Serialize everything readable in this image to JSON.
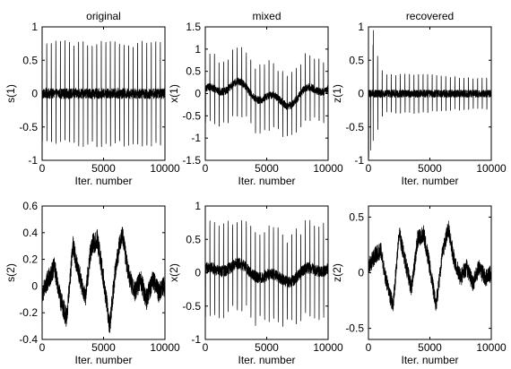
{
  "chart_data": [
    {
      "type": "line",
      "title": "original",
      "xlabel": "Iter. number",
      "ylabel": "s(1)",
      "xlim": [
        0,
        10000
      ],
      "ylim": [
        -1,
        1
      ],
      "xticks": [
        "0",
        "5000",
        "10000"
      ],
      "yticks": [
        "-1",
        "-0.5",
        "0",
        "0.5",
        "1"
      ],
      "series": [
        {
          "signal": "periodic-spikes",
          "amplitude": 0.8,
          "period_iterations": 370,
          "baseline_noise": 0.08
        }
      ]
    },
    {
      "type": "line",
      "title": "mixed",
      "xlabel": "Iter. number",
      "ylabel": "x(1)",
      "xlim": [
        0,
        10000
      ],
      "ylim": [
        -1.5,
        1.5
      ],
      "xticks": [
        "0",
        "5000",
        "10000"
      ],
      "yticks": [
        "-1.5",
        "-1",
        "-0.5",
        "0",
        "0.5",
        "1",
        "1.5"
      ],
      "series": [
        {
          "signal": "spikes-plus-slow-drift",
          "spike_amplitude": 0.7,
          "drift_amplitude": 0.3,
          "period_iterations": 370
        }
      ]
    },
    {
      "type": "line",
      "title": "recovered",
      "xlabel": "Iter. number",
      "ylabel": "z(1)",
      "xlim": [
        0,
        10000
      ],
      "ylim": [
        -1,
        1
      ],
      "xticks": [
        "0",
        "5000",
        "10000"
      ],
      "yticks": [
        "-1",
        "-0.5",
        "0",
        "0.5",
        "1"
      ],
      "series": [
        {
          "signal": "converging-spikes",
          "initial_amplitude": 0.9,
          "final_amplitude": 0.3,
          "period_iterations": 370
        }
      ]
    },
    {
      "type": "line",
      "title": "",
      "xlabel": "Iter. number",
      "ylabel": "s(2)",
      "xlim": [
        0,
        10000
      ],
      "ylim": [
        -0.4,
        0.6
      ],
      "xticks": [
        "0",
        "5000",
        "10000"
      ],
      "yticks": [
        "-0.4",
        "-0.2",
        "0",
        "0.2",
        "0.4",
        "0.6"
      ],
      "series": [
        {
          "signal": "slow-random-walk",
          "min": -0.35,
          "max": 0.48,
          "x": [
            0,
            500,
            1000,
            1500,
            2000,
            2500,
            3000,
            3500,
            4000,
            4500,
            5000,
            5500,
            6000,
            6500,
            7000,
            7500,
            8000,
            8500,
            9000,
            9500,
            10000
          ],
          "y": [
            -0.05,
            0.05,
            0.15,
            -0.1,
            -0.25,
            0.3,
            0.1,
            -0.1,
            0.3,
            0.35,
            0.05,
            -0.3,
            0.15,
            0.4,
            0.1,
            -0.05,
            0.05,
            -0.1,
            0.05,
            -0.05,
            0.0
          ]
        }
      ]
    },
    {
      "type": "line",
      "title": "",
      "xlabel": "Iter. number",
      "ylabel": "x(2)",
      "xlim": [
        0,
        10000
      ],
      "ylim": [
        -1,
        1
      ],
      "xticks": [
        "0",
        "5000",
        "10000"
      ],
      "yticks": [
        "-1",
        "-0.5",
        "0",
        "0.5",
        "1"
      ],
      "series": [
        {
          "signal": "spikes-plus-slow-drift",
          "spike_amplitude": 0.65,
          "drift_amplitude": 0.15,
          "period_iterations": 370
        }
      ]
    },
    {
      "type": "line",
      "title": "",
      "xlabel": "Iter. number",
      "ylabel": "z(2)",
      "xlim": [
        0,
        10000
      ],
      "ylim": [
        -0.6,
        0.6
      ],
      "xticks": [
        "0",
        "5000",
        "10000"
      ],
      "yticks": [
        "-0.5",
        "0",
        "0.5"
      ],
      "series": [
        {
          "signal": "slow-random-walk",
          "min": -0.4,
          "max": 0.5,
          "x": [
            0,
            500,
            1000,
            1500,
            2000,
            2500,
            3000,
            3500,
            4000,
            4500,
            5000,
            5500,
            6000,
            6500,
            7000,
            7500,
            8000,
            8500,
            9000,
            9500,
            10000
          ],
          "y": [
            0.05,
            0.15,
            0.2,
            -0.1,
            -0.3,
            0.35,
            0.1,
            -0.15,
            0.3,
            0.35,
            0.05,
            -0.3,
            0.15,
            0.4,
            0.1,
            -0.05,
            0.05,
            -0.1,
            0.05,
            -0.05,
            0.0
          ]
        }
      ]
    }
  ]
}
